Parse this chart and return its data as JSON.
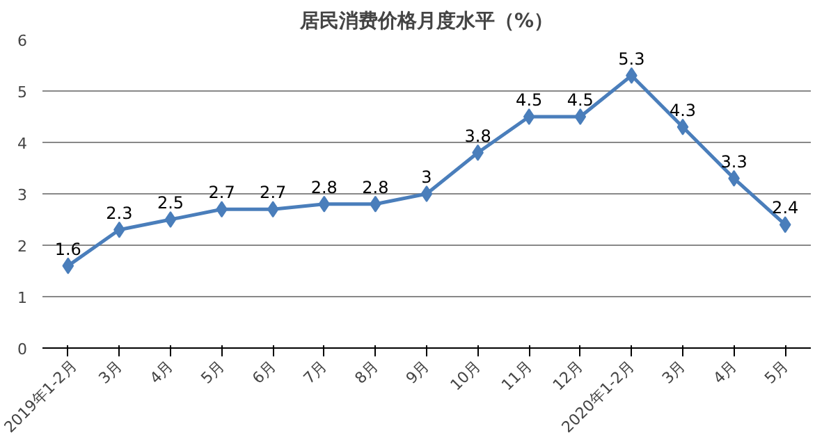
{
  "chart_data": {
    "type": "line",
    "title": "居民消费价格月度水平（%）",
    "categories": [
      "2019年1-2月",
      "3月",
      "4月",
      "5月",
      "6月",
      "7月",
      "8月",
      "9月",
      "10月",
      "11月",
      "12月",
      "2020年1-2月",
      "3月",
      "4月",
      "5月"
    ],
    "series": [
      {
        "color": "#4a7ebb",
        "values": [
          1.6,
          2.3,
          2.5,
          2.7,
          2.7,
          2.8,
          2.8,
          3,
          3.8,
          4.5,
          4.5,
          5.3,
          4.3,
          3.3,
          2.4
        ]
      }
    ],
    "ylim": [
      0,
      6
    ],
    "yticks": [
      0,
      1,
      2,
      3,
      4,
      5,
      6
    ],
    "grid": "y",
    "marker": "diamond",
    "line_style": "solid",
    "data_labels": true
  }
}
